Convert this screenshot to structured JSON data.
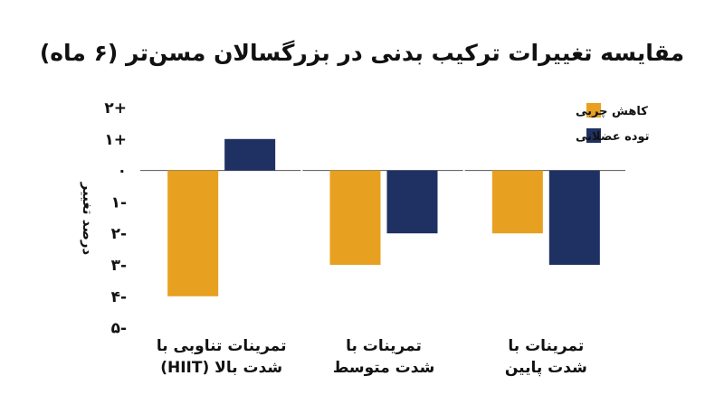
{
  "chart_data": {
    "type": "bar",
    "title": "مقایسه تغییرات ترکیب بدنی در بزرگسالان مسن‌تر (۶ ماه)",
    "ylabel": "درصد تغییر",
    "ylim": [
      -5,
      2
    ],
    "yticks": [
      2,
      1,
      0,
      -1,
      -2,
      -3,
      -4,
      -5
    ],
    "ytick_labels": [
      "۲+",
      "۱+",
      "۰",
      "۱-",
      "۲-",
      "۳-",
      "۴-",
      "۵-"
    ],
    "grid": false,
    "legend_position": "top-right",
    "categories": [
      [
        "تمرینات تناوبی با",
        "شدت بالا (HIIT)"
      ],
      [
        "تمرینات با",
        "شدت متوسط"
      ],
      [
        "تمرینات با",
        "شدت پایین"
      ]
    ],
    "series": [
      {
        "name": "کاهش چربی",
        "color": "#E8A020",
        "values": [
          -4,
          -3,
          -2
        ]
      },
      {
        "name": "توده عضلانی",
        "color": "#1F3163",
        "values": [
          1,
          -2,
          -3
        ]
      }
    ]
  }
}
